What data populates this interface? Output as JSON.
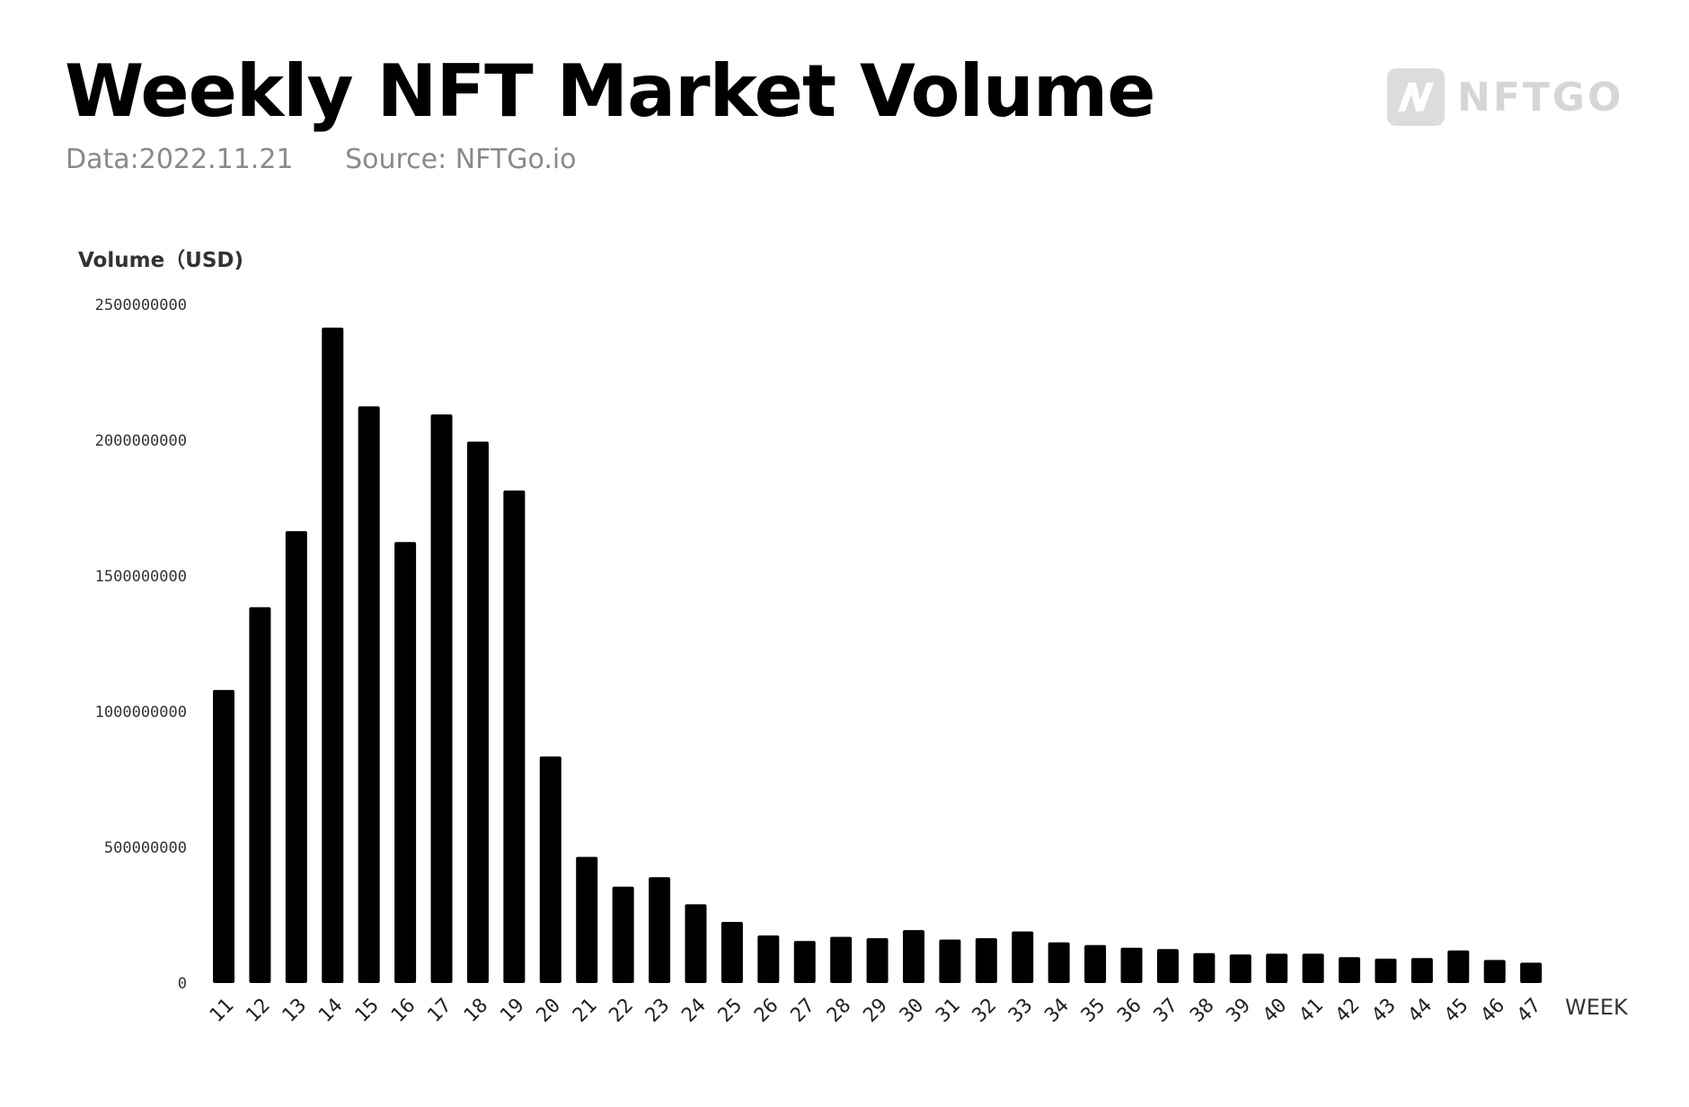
{
  "header": {
    "title": "Weekly NFT Market Volume",
    "date": "Data:2022.11.21",
    "source": "Source: NFTGo.io"
  },
  "logo": {
    "text": "NFTGO",
    "icon": "nftgo-logo-icon",
    "color": "#d6d6d6"
  },
  "chart_data": {
    "type": "bar",
    "ylabel": "Volume（USD)",
    "xlabel": "WEEK",
    "ylim": [
      0,
      2500000000
    ],
    "yticks": [
      "0",
      "500000000",
      "1000000000",
      "1500000000",
      "2000000000",
      "2500000000"
    ],
    "grid": false,
    "bar_color": "#000000",
    "categories": [
      "11",
      "12",
      "13",
      "14",
      "15",
      "16",
      "17",
      "18",
      "19",
      "20",
      "21",
      "22",
      "23",
      "24",
      "25",
      "26",
      "27",
      "28",
      "29",
      "30",
      "31",
      "32",
      "33",
      "34",
      "35",
      "36",
      "37",
      "38",
      "39",
      "40",
      "41",
      "42",
      "43",
      "44",
      "45",
      "46",
      "47"
    ],
    "values": [
      1080000000,
      1385000000,
      1665000000,
      2415000000,
      2125000000,
      1625000000,
      2095000000,
      1995000000,
      1815000000,
      835000000,
      465000000,
      355000000,
      390000000,
      290000000,
      225000000,
      175000000,
      155000000,
      170000000,
      165000000,
      195000000,
      160000000,
      165000000,
      190000000,
      150000000,
      140000000,
      130000000,
      125000000,
      110000000,
      105000000,
      108000000,
      108000000,
      95000000,
      90000000,
      92000000,
      120000000,
      85000000,
      75000000
    ]
  }
}
